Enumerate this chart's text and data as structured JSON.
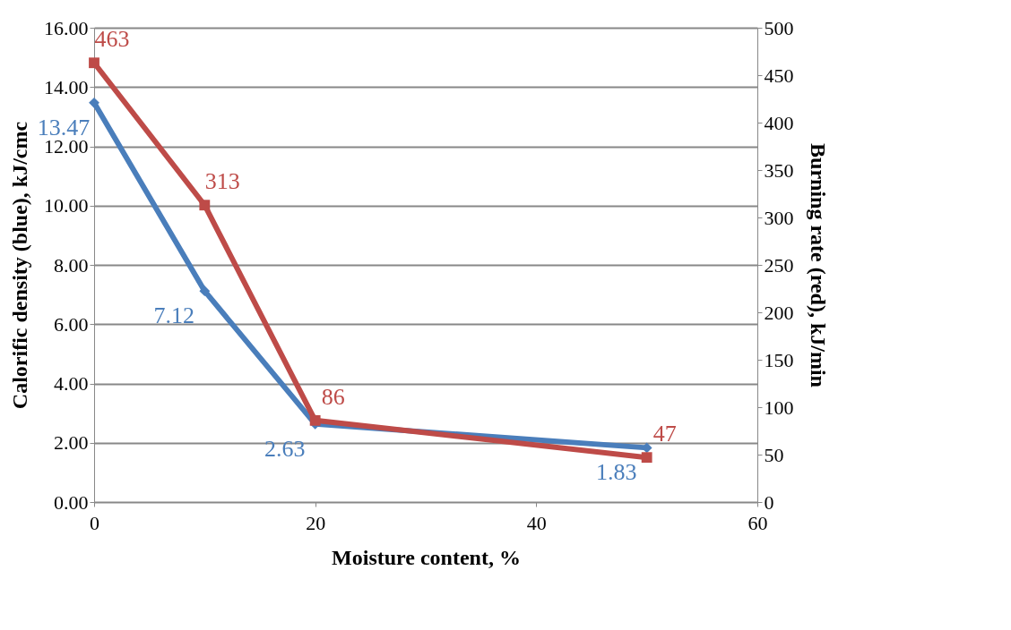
{
  "chart_data": {
    "type": "line",
    "xlabel": "Moisture content, %",
    "ylabel": "Calorific density (blue), kJ/cmc",
    "y2label": "Burning rate (red), kJ/min",
    "x": [
      0,
      10,
      20,
      50
    ],
    "series": [
      {
        "color": "#4a7ebb",
        "values": [
          13.47,
          7.12,
          2.63,
          1.83
        ],
        "marker": "diamond"
      },
      {
        "color": "#be4b48",
        "values": [
          463,
          313,
          86,
          47
        ],
        "axis": "y2",
        "marker": "square"
      }
    ],
    "xlim": [
      0,
      60
    ],
    "xticks": [
      0,
      20,
      40,
      60
    ],
    "ylim": [
      0,
      16
    ],
    "yticks": [
      {
        "value": 0,
        "label": "0.00"
      },
      {
        "value": 2,
        "label": "2.00"
      },
      {
        "value": 4,
        "label": "4.00"
      },
      {
        "value": 6,
        "label": "6.00"
      },
      {
        "value": 8,
        "label": "8.00"
      },
      {
        "value": 10,
        "label": "10.00"
      },
      {
        "value": 12,
        "label": "12.00"
      },
      {
        "value": 14,
        "label": "14.00"
      },
      {
        "value": 16,
        "label": "16.00"
      }
    ],
    "y2lim": [
      0,
      500
    ],
    "y2ticks": [
      0,
      50,
      100,
      150,
      200,
      250,
      300,
      350,
      400,
      450,
      500
    ],
    "grid": "y",
    "data_labels": true,
    "line_style": "solid"
  }
}
